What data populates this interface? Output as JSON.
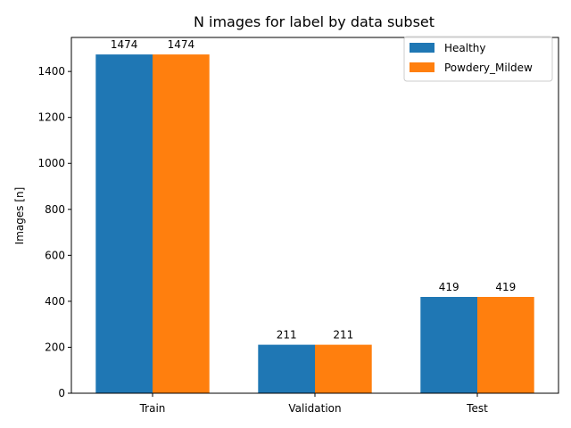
{
  "chart_data": {
    "type": "bar",
    "title": "N images for label by data subset",
    "xlabel": "",
    "ylabel": "Images [n]",
    "categories": [
      "Train",
      "Validation",
      "Test"
    ],
    "series": [
      {
        "name": "Healthy",
        "color": "#1f77b4",
        "values": [
          1474,
          211,
          419
        ]
      },
      {
        "name": "Powdery_Mildew",
        "color": "#ff7f0e",
        "values": [
          1474,
          211,
          419
        ]
      }
    ],
    "ylim": [
      0,
      1548
    ],
    "yticks": [
      0,
      200,
      400,
      600,
      800,
      1000,
      1200,
      1400
    ],
    "grid": false,
    "legend": "top-right"
  }
}
